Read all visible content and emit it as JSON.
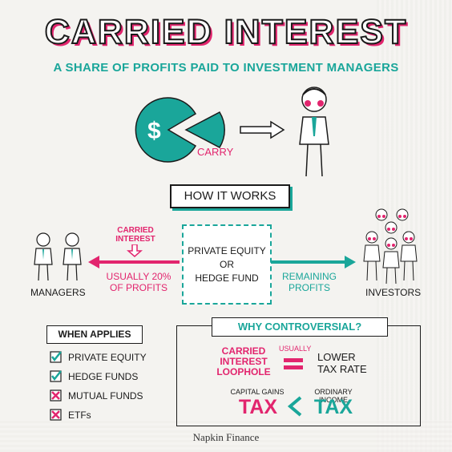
{
  "title": "CARRIED INTEREST",
  "subtitle": "A SHARE OF PROFITS PAID TO INVESTMENT MANAGERS",
  "top": {
    "currency_symbol": "$",
    "carry_label": "CARRY"
  },
  "how_it_works": "HOW IT WORKS",
  "flow": {
    "carried_interest": [
      "CARRIED",
      "INTEREST"
    ],
    "managers_share": [
      "USUALLY 20%",
      "OF PROFITS"
    ],
    "fund_lines": [
      "PRIVATE EQUITY",
      "OR",
      "HEDGE FUND"
    ],
    "remaining": [
      "REMAINING",
      "PROFITS"
    ],
    "managers_label": "MANAGERS",
    "investors_label": "INVESTORS"
  },
  "when_applies": {
    "heading": "WHEN APPLIES",
    "items": [
      {
        "label": "PRIVATE EQUITY",
        "status": "check"
      },
      {
        "label": "HEDGE FUNDS",
        "status": "check"
      },
      {
        "label": "MUTUAL FUNDS",
        "status": "cross"
      },
      {
        "label": "ETFs",
        "status": "cross"
      }
    ]
  },
  "controversial": {
    "heading": "WHY CONTROVERSIAL?",
    "loophole": [
      "CARRIED",
      "INTEREST",
      "LOOPHOLE"
    ],
    "usually": "USUALLY",
    "lower": [
      "LOWER",
      "TAX RATE"
    ],
    "capital_gains": "CAPITAL GAINS",
    "ordinary_income": "ORDINARY INCOME",
    "tax_left": "TAX",
    "tax_right": "TAX"
  },
  "footer": "Napkin Finance",
  "colors": {
    "teal": "#1aa69a",
    "pink": "#e2256e",
    "ink": "#1b1b1b"
  }
}
